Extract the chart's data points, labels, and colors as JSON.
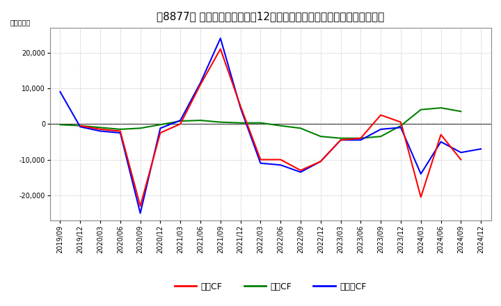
{
  "title": "［8877］ キャッシュフローの12か月移動合計の対前年同期増減額の推移",
  "ylabel": "（百万円）",
  "background_color": "#ffffff",
  "plot_bg_color": "#ffffff",
  "grid_color": "#aaaaaa",
  "x_labels": [
    "2019/09",
    "2019/12",
    "2020/03",
    "2020/06",
    "2020/09",
    "2020/12",
    "2021/03",
    "2021/06",
    "2021/09",
    "2021/12",
    "2022/03",
    "2022/06",
    "2022/09",
    "2022/12",
    "2023/03",
    "2023/06",
    "2023/09",
    "2023/12",
    "2024/03",
    "2024/06",
    "2024/09",
    "2024/12"
  ],
  "operating_cf": [
    null,
    -500,
    -1500,
    -2000,
    -23000,
    -2500,
    0,
    11000,
    21000,
    5000,
    -10000,
    -10000,
    -13000,
    -10500,
    -4500,
    -4000,
    2500,
    500,
    -20500,
    -3000,
    -10000,
    null
  ],
  "investing_cf": [
    -200,
    -500,
    -1000,
    -1500,
    -1200,
    -200,
    800,
    1000,
    500,
    300,
    300,
    -500,
    -1200,
    -3500,
    -4000,
    -4000,
    -3500,
    -500,
    4000,
    4500,
    3500,
    null
  ],
  "free_cf": [
    9000,
    -800,
    -2000,
    -2500,
    -25000,
    -1200,
    1000,
    11500,
    24000,
    4500,
    -11000,
    -11500,
    -13500,
    -10500,
    -4500,
    -4500,
    -1500,
    -1000,
    -14000,
    -5000,
    -8000,
    -7000
  ],
  "operating_color": "#ff0000",
  "investing_color": "#008000",
  "free_color": "#0000ff",
  "ylim": [
    -27000,
    27000
  ],
  "yticks": [
    -20000,
    -10000,
    0,
    10000,
    20000
  ],
  "legend_labels": [
    "営業CF",
    "投資CF",
    "フリーCF"
  ],
  "title_fontsize": 11,
  "axis_fontsize": 7,
  "legend_fontsize": 9,
  "linewidth": 1.5
}
